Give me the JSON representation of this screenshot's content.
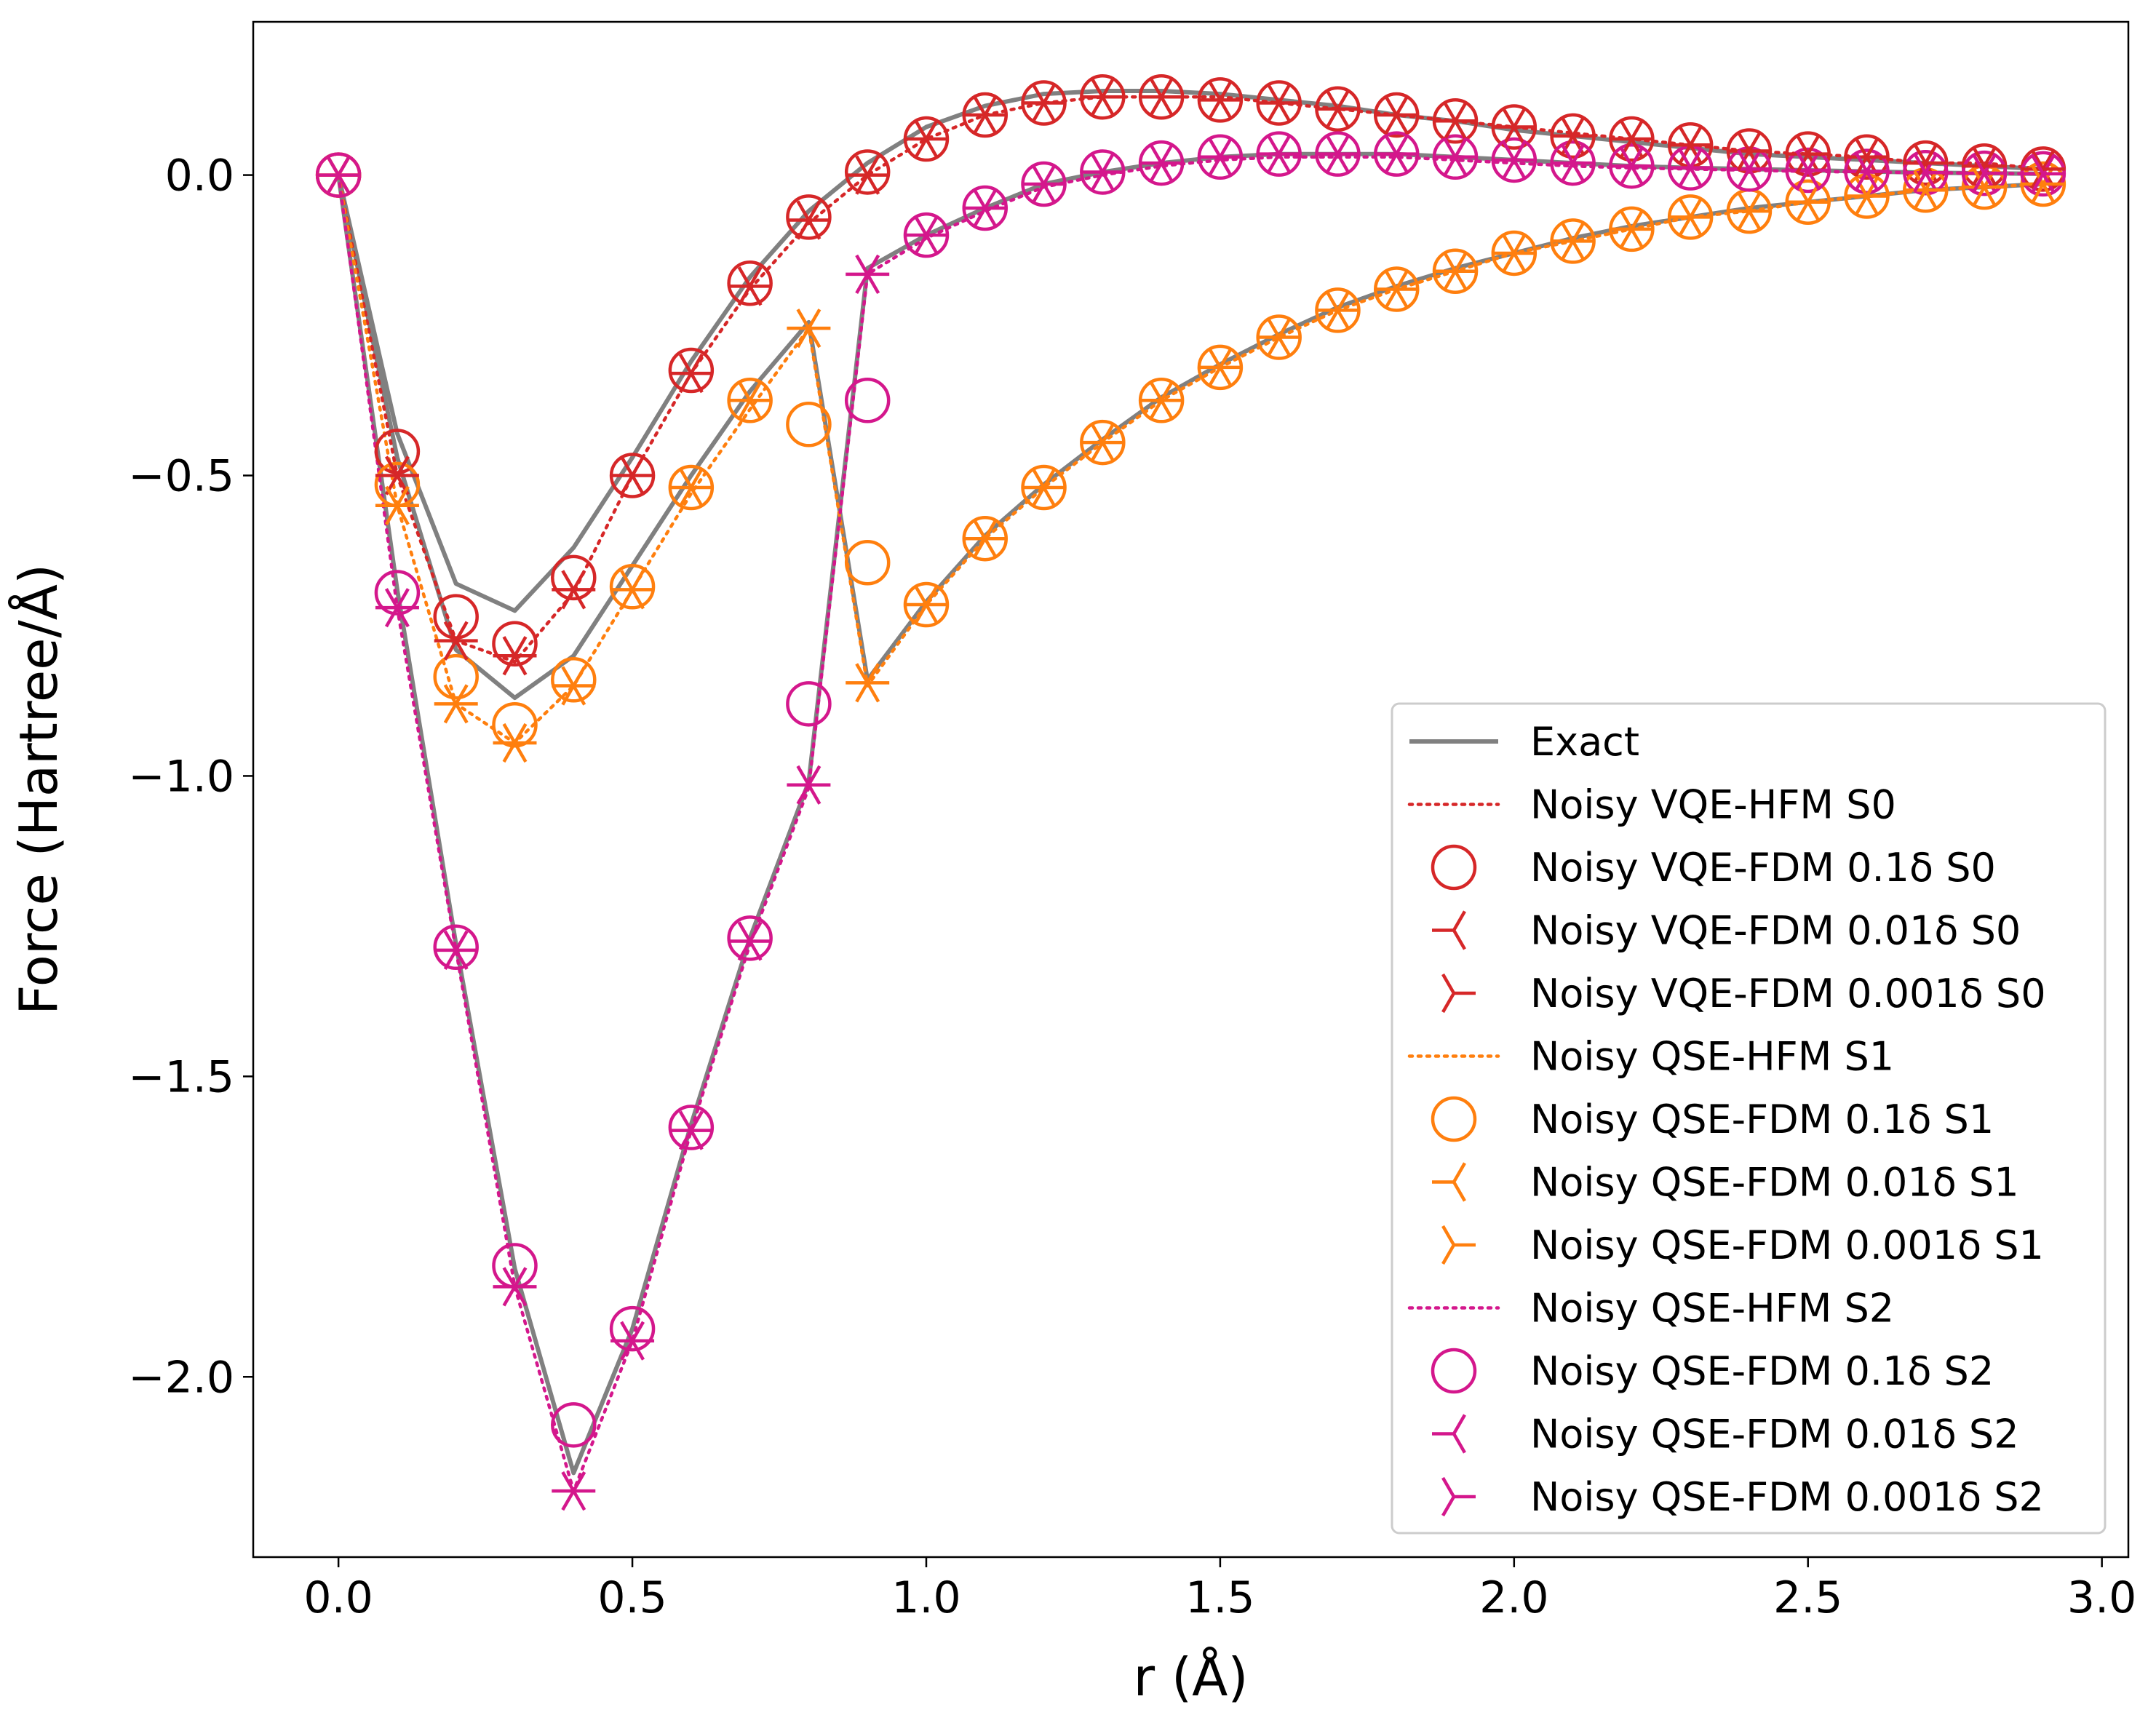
{
  "chart_data": {
    "type": "line",
    "title": "",
    "xlabel": "r (Å)",
    "ylabel": "Force (Hartree/Å)",
    "xlim": [
      -0.145,
      3.045
    ],
    "ylim": [
      -2.3,
      0.255
    ],
    "xticks": [
      0.0,
      0.5,
      1.0,
      1.5,
      2.0,
      2.5,
      3.0
    ],
    "xtick_labels": [
      "0.0",
      "0.5",
      "1.0",
      "1.5",
      "2.0",
      "2.5",
      "3.0"
    ],
    "yticks": [
      0.0,
      -0.5,
      -1.0,
      -1.5,
      -2.0
    ],
    "ytick_labels": [
      "0.0",
      "−0.5",
      "−1.0",
      "−1.5",
      "−2.0"
    ],
    "grid": false,
    "legend_position": "lower-right",
    "colors": {
      "exact": "#808080",
      "s0": "#d62728",
      "s1": "#ff7f0e",
      "s2": "#d4178c"
    },
    "legend": [
      "Exact",
      "Noisy VQE-HFM S0",
      "Noisy VQE-FDM 0.1δ S0",
      "Noisy VQE-FDM 0.01δ S0",
      "Noisy VQE-FDM 0.001δ S0",
      "Noisy QSE-HFM S1",
      "Noisy QSE-FDM 0.1δ S1",
      "Noisy QSE-FDM 0.01δ S1",
      "Noisy QSE-FDM 0.001δ S1",
      "Noisy QSE-HFM S2",
      "Noisy QSE-FDM 0.1δ S2",
      "Noisy QSE-FDM 0.01δ S2",
      "Noisy QSE-FDM 0.001δ S2"
    ],
    "x": [
      0.0,
      0.1,
      0.2,
      0.3,
      0.4,
      0.5,
      0.6,
      0.7,
      0.8,
      0.9,
      1.0,
      1.1,
      1.2,
      1.3,
      1.4,
      1.5,
      1.6,
      1.7,
      1.8,
      1.9,
      2.0,
      2.1,
      2.2,
      2.3,
      2.4,
      2.5,
      2.6,
      2.7,
      2.8,
      2.9
    ],
    "series": [
      {
        "name": "Exact S0",
        "state": "s0",
        "style": "exact",
        "values": [
          0.0,
          -0.43,
          -0.68,
          -0.725,
          -0.62,
          -0.47,
          -0.31,
          -0.17,
          -0.06,
          0.02,
          0.08,
          0.115,
          0.135,
          0.14,
          0.14,
          0.135,
          0.125,
          0.115,
          0.1,
          0.09,
          0.075,
          0.065,
          0.055,
          0.045,
          0.035,
          0.03,
          0.025,
          0.02,
          0.015,
          0.01
        ]
      },
      {
        "name": "Exact S1",
        "state": "s1",
        "style": "exact",
        "values": [
          0.0,
          -0.47,
          -0.79,
          -0.87,
          -0.8,
          -0.65,
          -0.5,
          -0.36,
          -0.245,
          -0.84,
          -0.71,
          -0.6,
          -0.515,
          -0.44,
          -0.37,
          -0.315,
          -0.265,
          -0.22,
          -0.185,
          -0.155,
          -0.13,
          -0.105,
          -0.085,
          -0.07,
          -0.055,
          -0.045,
          -0.035,
          -0.025,
          -0.02,
          -0.015
        ]
      },
      {
        "name": "Exact S2",
        "state": "s2",
        "style": "exact",
        "values": [
          0.0,
          -0.69,
          -1.28,
          -1.82,
          -2.16,
          -1.92,
          -1.58,
          -1.27,
          -1.01,
          -0.155,
          -0.1,
          -0.055,
          -0.015,
          0.005,
          0.02,
          0.03,
          0.035,
          0.035,
          0.035,
          0.03,
          0.025,
          0.02,
          0.015,
          0.012,
          0.01,
          0.008,
          0.006,
          0.004,
          0.003,
          0.002
        ]
      },
      {
        "name": "Noisy VQE-HFM S0",
        "state": "s0",
        "style": "hfm",
        "values": [
          0.0,
          -0.5,
          -0.775,
          -0.81,
          -0.695,
          -0.5,
          -0.33,
          -0.19,
          -0.08,
          0.0,
          0.06,
          0.1,
          0.12,
          0.13,
          0.13,
          0.13,
          0.12,
          0.11,
          0.1,
          0.09,
          0.08,
          0.07,
          0.06,
          0.05,
          0.04,
          0.035,
          0.03,
          0.02,
          0.02,
          0.01
        ]
      },
      {
        "name": "Noisy VQE-FDM 0.1δ S0",
        "state": "s0",
        "style": "circle",
        "values": [
          0.0,
          -0.46,
          -0.735,
          -0.78,
          -0.67,
          -0.5,
          -0.325,
          -0.18,
          -0.07,
          0.005,
          0.06,
          0.1,
          0.12,
          0.13,
          0.13,
          0.125,
          0.12,
          0.11,
          0.1,
          0.09,
          0.08,
          0.065,
          0.06,
          0.05,
          0.04,
          0.035,
          0.03,
          0.02,
          0.015,
          0.01
        ]
      },
      {
        "name": "Noisy VQE-FDM 0.01δ S0",
        "state": "s0",
        "style": "tri_left",
        "values": [
          0.0,
          -0.5,
          -0.775,
          -0.8,
          -0.69,
          -0.5,
          -0.33,
          -0.185,
          -0.075,
          0.0,
          0.06,
          0.1,
          0.12,
          0.13,
          0.13,
          0.125,
          0.12,
          0.11,
          0.1,
          0.09,
          0.08,
          0.065,
          0.06,
          0.05,
          0.04,
          0.035,
          0.03,
          0.02,
          0.015,
          0.01
        ]
      },
      {
        "name": "Noisy VQE-FDM 0.001δ S0",
        "state": "s0",
        "style": "tri_right",
        "values": [
          0.0,
          -0.5,
          -0.775,
          -0.8,
          -0.69,
          -0.5,
          -0.33,
          -0.185,
          -0.075,
          0.0,
          0.06,
          0.1,
          0.12,
          0.13,
          0.13,
          0.125,
          0.12,
          0.11,
          0.1,
          0.09,
          0.08,
          0.065,
          0.06,
          0.05,
          0.04,
          0.035,
          0.03,
          0.02,
          0.015,
          0.01
        ]
      },
      {
        "name": "Noisy QSE-HFM S1",
        "state": "s1",
        "style": "hfm",
        "values": [
          0.0,
          -0.55,
          -0.88,
          -0.945,
          -0.85,
          -0.69,
          -0.53,
          -0.39,
          -0.255,
          -0.85,
          -0.715,
          -0.605,
          -0.52,
          -0.445,
          -0.375,
          -0.32,
          -0.27,
          -0.225,
          -0.19,
          -0.16,
          -0.13,
          -0.11,
          -0.09,
          -0.07,
          -0.06,
          -0.045,
          -0.035,
          -0.025,
          -0.02,
          -0.015
        ]
      },
      {
        "name": "Noisy QSE-FDM 0.1δ S1",
        "state": "s1",
        "style": "circle",
        "values": [
          0.0,
          -0.515,
          -0.835,
          -0.915,
          -0.84,
          -0.685,
          -0.52,
          -0.375,
          -0.415,
          -0.645,
          -0.715,
          -0.605,
          -0.52,
          -0.445,
          -0.375,
          -0.32,
          -0.27,
          -0.225,
          -0.19,
          -0.16,
          -0.13,
          -0.11,
          -0.09,
          -0.07,
          -0.06,
          -0.045,
          -0.035,
          -0.025,
          -0.02,
          -0.015
        ]
      },
      {
        "name": "Noisy QSE-FDM 0.01δ S1",
        "state": "s1",
        "style": "tri_left",
        "values": [
          0.0,
          -0.55,
          -0.88,
          -0.945,
          -0.85,
          -0.69,
          -0.52,
          -0.375,
          -0.255,
          -0.845,
          -0.715,
          -0.605,
          -0.52,
          -0.445,
          -0.375,
          -0.32,
          -0.27,
          -0.225,
          -0.19,
          -0.16,
          -0.13,
          -0.11,
          -0.09,
          -0.07,
          -0.06,
          -0.045,
          -0.035,
          -0.025,
          -0.02,
          -0.015
        ]
      },
      {
        "name": "Noisy QSE-FDM 0.001δ S1",
        "state": "s1",
        "style": "tri_right",
        "values": [
          0.0,
          -0.55,
          -0.88,
          -0.945,
          -0.85,
          -0.69,
          -0.52,
          -0.375,
          -0.255,
          -0.845,
          -0.715,
          -0.605,
          -0.52,
          -0.445,
          -0.375,
          -0.32,
          -0.27,
          -0.225,
          -0.19,
          -0.16,
          -0.13,
          -0.11,
          -0.09,
          -0.07,
          -0.06,
          -0.045,
          -0.035,
          -0.025,
          -0.02,
          -0.015
        ]
      },
      {
        "name": "Noisy QSE-HFM S2",
        "state": "s2",
        "style": "hfm",
        "values": [
          0.0,
          -0.72,
          -1.29,
          -1.85,
          -2.19,
          -1.94,
          -1.59,
          -1.28,
          -1.02,
          -0.165,
          -0.105,
          -0.06,
          -0.02,
          0.0,
          0.015,
          0.025,
          0.03,
          0.03,
          0.03,
          0.025,
          0.02,
          0.015,
          0.012,
          0.01,
          0.008,
          0.006,
          0.005,
          0.004,
          0.003,
          0.002
        ]
      },
      {
        "name": "Noisy QSE-FDM 0.1δ S2",
        "state": "s2",
        "style": "circle",
        "values": [
          0.0,
          -0.695,
          -1.285,
          -1.815,
          -2.08,
          -1.92,
          -1.585,
          -1.27,
          -0.88,
          -0.375,
          -0.1,
          -0.055,
          -0.015,
          0.005,
          0.02,
          0.03,
          0.035,
          0.035,
          0.035,
          0.03,
          0.025,
          0.02,
          0.015,
          0.012,
          0.01,
          0.008,
          0.006,
          0.004,
          0.003,
          0.002
        ]
      },
      {
        "name": "Noisy QSE-FDM 0.01δ S2",
        "state": "s2",
        "style": "tri_left",
        "values": [
          0.0,
          -0.72,
          -1.29,
          -1.85,
          -2.19,
          -1.94,
          -1.59,
          -1.275,
          -1.015,
          -0.165,
          -0.1,
          -0.055,
          -0.015,
          0.005,
          0.02,
          0.03,
          0.035,
          0.035,
          0.035,
          0.03,
          0.025,
          0.02,
          0.015,
          0.012,
          0.01,
          0.008,
          0.006,
          0.004,
          0.003,
          0.002
        ]
      },
      {
        "name": "Noisy QSE-FDM 0.001δ S2",
        "state": "s2",
        "style": "tri_right",
        "values": [
          0.0,
          -0.72,
          -1.29,
          -1.85,
          -2.19,
          -1.94,
          -1.59,
          -1.275,
          -1.015,
          -0.165,
          -0.1,
          -0.055,
          -0.015,
          0.005,
          0.02,
          0.03,
          0.035,
          0.035,
          0.035,
          0.03,
          0.025,
          0.02,
          0.015,
          0.012,
          0.01,
          0.008,
          0.006,
          0.004,
          0.003,
          0.002
        ]
      }
    ]
  }
}
